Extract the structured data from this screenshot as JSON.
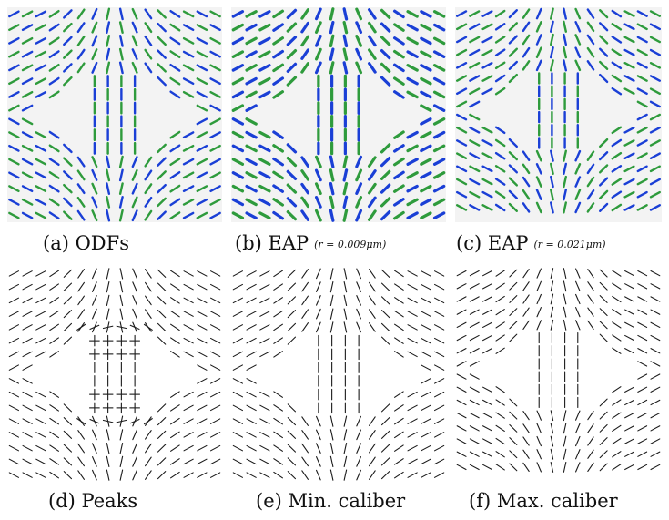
{
  "figure": {
    "panels": [
      {
        "id": "a",
        "caption": "(a) ODFs",
        "subcaption": "",
        "style": "odf"
      },
      {
        "id": "b",
        "caption": "(b) EAP",
        "subcaption": "(r = 0.009μm)",
        "style": "eap"
      },
      {
        "id": "c",
        "caption": "(c) EAP",
        "subcaption": "(r = 0.021μm)",
        "style": "eap-thin"
      },
      {
        "id": "d",
        "caption": "(d) Peaks",
        "subcaption": "",
        "style": "peaks"
      },
      {
        "id": "e",
        "caption": "(e) Min. caliber",
        "subcaption": "",
        "style": "lines"
      },
      {
        "id": "f",
        "caption": "(f) Max. caliber",
        "subcaption": "",
        "style": "lines"
      }
    ]
  },
  "colors": {
    "background_panel": "#f3f3f3",
    "glyph_green": "#2e9b3c",
    "glyph_blue": "#1a3fd6",
    "glyph_dark": "#1a1a1a"
  }
}
